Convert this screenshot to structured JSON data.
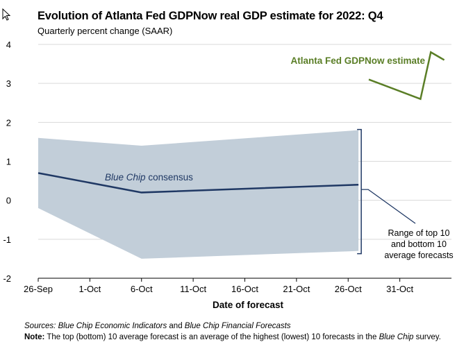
{
  "title": "Evolution of Atlanta Fed GDPNow real GDP estimate for 2022: Q4",
  "subtitle": "Quarterly percent change (SAAR)",
  "source_label": "Sources:",
  "source_text_1": "Blue Chip Economic Indicators",
  "source_and": "and",
  "source_text_2": "Blue Chip Financial Forecasts",
  "note_label": "Note:",
  "note_text_1": "The top (bottom) 10 average forecast is an average of the highest (lowest) 10 forecasts in the",
  "note_italic": "Blue Chip",
  "note_text_2": "survey.",
  "chart_data": {
    "type": "line",
    "xlabel": "Date of forecast",
    "ylabel": "Quarterly percent change (SAAR)",
    "ylim": [
      -2,
      4
    ],
    "yticks": [
      -2,
      -1,
      0,
      1,
      2,
      3,
      4
    ],
    "xlim_day": [
      0,
      40
    ],
    "xticks": [
      {
        "label": "26-Sep",
        "day": 0
      },
      {
        "label": "1-Oct",
        "day": 5
      },
      {
        "label": "6-Oct",
        "day": 10
      },
      {
        "label": "11-Oct",
        "day": 15
      },
      {
        "label": "16-Oct",
        "day": 20
      },
      {
        "label": "21-Oct",
        "day": 25
      },
      {
        "label": "26-Oct",
        "day": 30
      },
      {
        "label": "31-Oct",
        "day": 35
      }
    ],
    "grid": true,
    "colors": {
      "bluechip": "#1f3864",
      "range": "#c2ced9",
      "gdpnow": "#5a7e26",
      "grid": "#d9d9d9",
      "annotation": "#1f3864"
    },
    "range_band": {
      "name": "Range of top 10 and bottom 10 average forecasts",
      "day": [
        0,
        10,
        31
      ],
      "top": [
        1.6,
        1.4,
        1.8
      ],
      "bottom": [
        -0.2,
        -1.5,
        -1.3
      ]
    },
    "series": [
      {
        "name": "Blue Chip consensus",
        "label_italic": "Blue Chip",
        "label_rest": "consensus",
        "day": [
          0,
          10,
          31
        ],
        "values": [
          0.7,
          0.2,
          0.4
        ]
      },
      {
        "name": "Atlanta Fed GDPNow estimate",
        "label": "Atlanta Fed GDPNow estimate",
        "day": [
          32,
          37,
          38,
          39.3
        ],
        "values": [
          3.1,
          2.6,
          3.8,
          3.6
        ]
      }
    ],
    "annotation": {
      "lines": [
        "Range of top 10",
        "and bottom 10",
        "average forecasts"
      ]
    }
  }
}
